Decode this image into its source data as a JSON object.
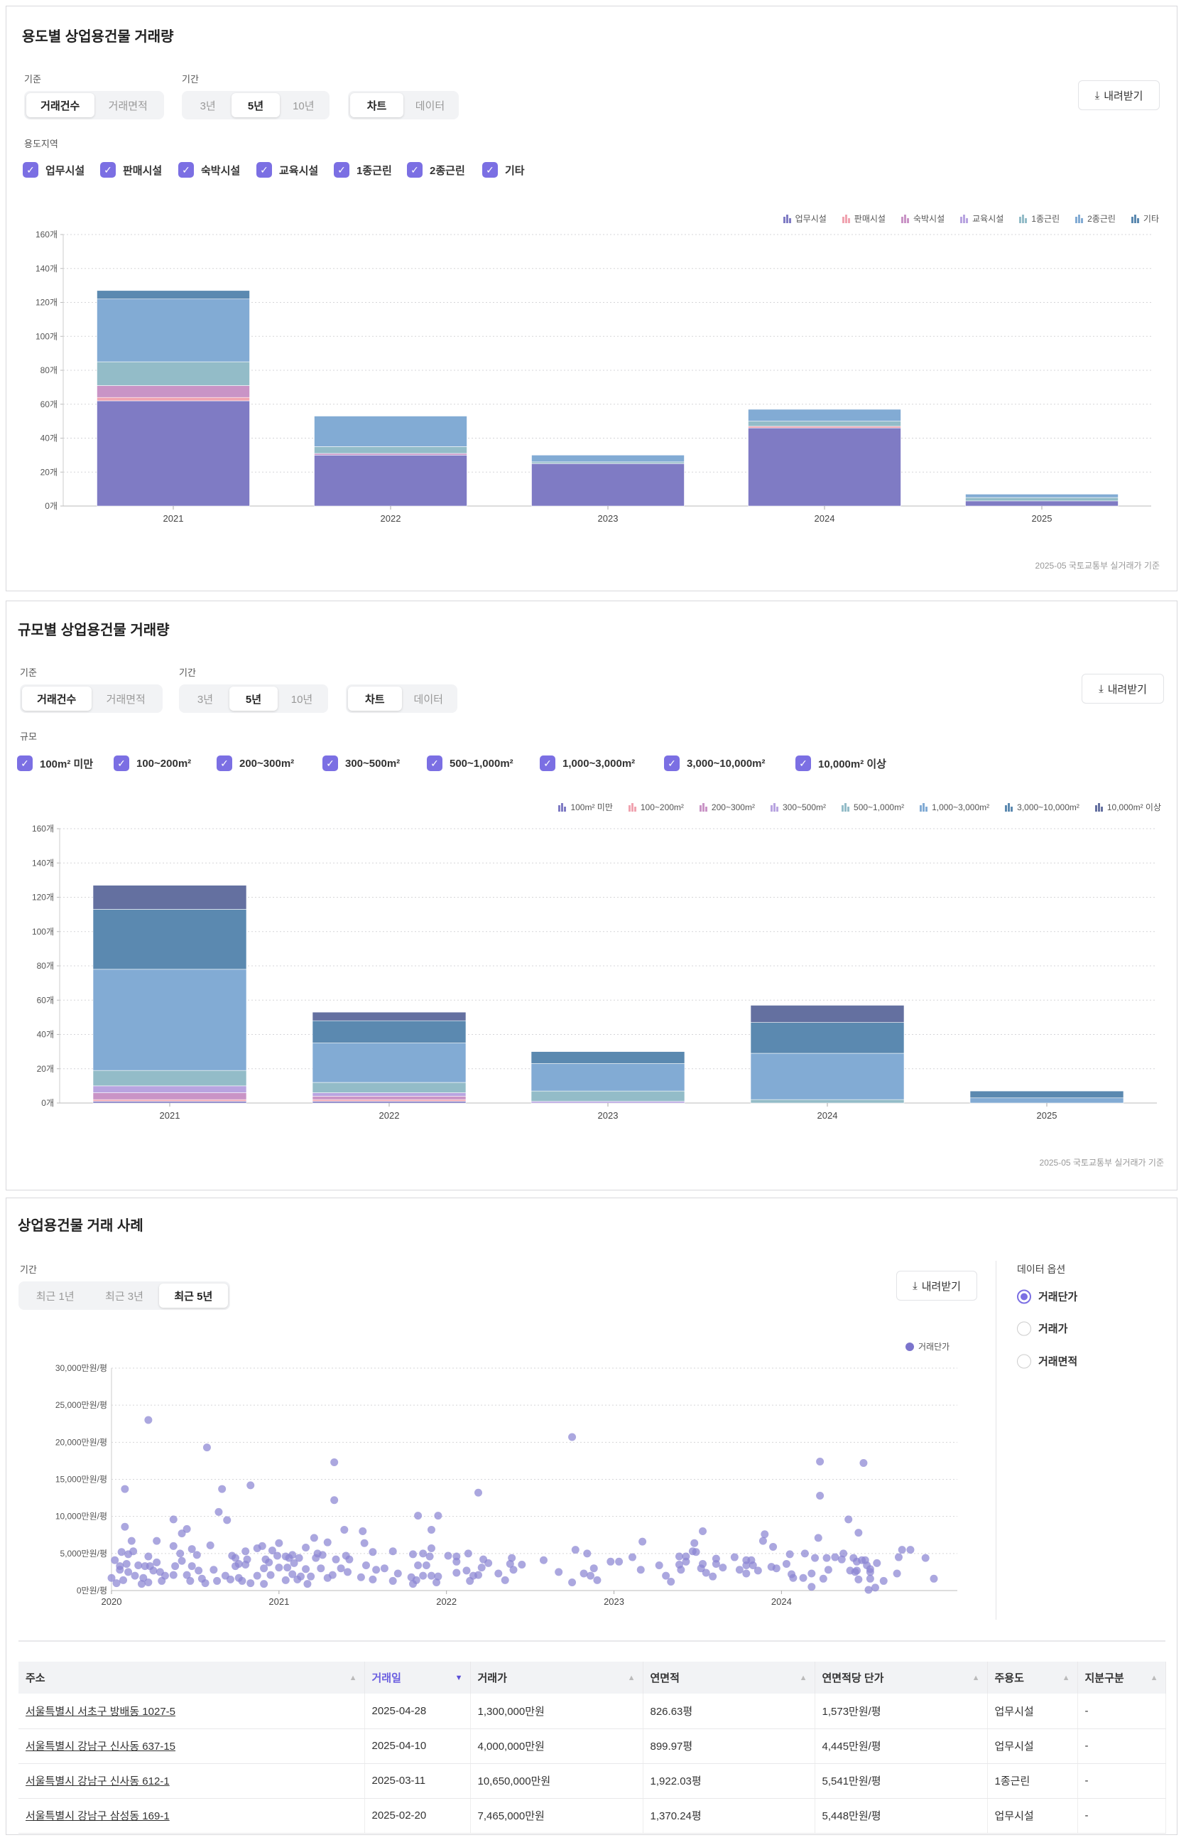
{
  "common": {
    "basis_label": "기준",
    "period_label": "기간",
    "download": "내려받기",
    "footnote": "2025-05 국토교통부 실거래가 기준",
    "basis_options": [
      "거래건수",
      "거래면적"
    ],
    "period_options": [
      "3년",
      "5년",
      "10년"
    ],
    "view_options": [
      "차트",
      "데이터"
    ]
  },
  "panel1": {
    "title": "용도별 상업용건물 거래량",
    "filter_label": "용도지역",
    "checkboxes": [
      "업무시설",
      "판매시설",
      "숙박시설",
      "교육시설",
      "1종근린",
      "2종근린",
      "기타"
    ]
  },
  "panel2": {
    "title": "규모별 상업용건물 거래량",
    "filter_label": "규모",
    "checkboxes": [
      "100m² 미만",
      "100~200m²",
      "200~300m²",
      "300~500m²",
      "500~1,000m²",
      "1,000~3,000m²",
      "3,000~10,000m²",
      "10,000m² 이상"
    ]
  },
  "panel3": {
    "title": "상업용건물 거래 사례",
    "period_label": "기간",
    "period_options": [
      "최근 1년",
      "최근 3년",
      "최근 5년"
    ],
    "data_options_label": "데이터 옵션",
    "data_options": [
      "거래단가",
      "거래가",
      "거래면적"
    ],
    "table": {
      "headers": [
        "주소",
        "거래일",
        "거래가",
        "연면적",
        "연면적당 단가",
        "주용도",
        "지분구분"
      ],
      "rows": [
        [
          "서울특별시 서초구 방배동 1027-5",
          "2025-04-28",
          "1,300,000만원",
          "826.63평",
          "1,573만원/평",
          "업무시설",
          "-"
        ],
        [
          "서울특별시 강남구 신사동 637-15",
          "2025-04-10",
          "4,000,000만원",
          "899.97평",
          "4,445만원/평",
          "업무시설",
          "-"
        ],
        [
          "서울특별시 강남구 신사동 612-1",
          "2025-03-11",
          "10,650,000만원",
          "1,922.03평",
          "5,541만원/평",
          "1종근린",
          "-"
        ],
        [
          "서울특별시 강남구 삼성동 169-1",
          "2025-02-20",
          "7,465,000만원",
          "1,370.24평",
          "5,448만원/평",
          "업무시설",
          "-"
        ]
      ]
    }
  },
  "chart_data": [
    {
      "type": "bar",
      "stacked": true,
      "title": "용도별 상업용건물 거래량",
      "categories": [
        "2021",
        "2022",
        "2023",
        "2024",
        "2025"
      ],
      "ylim": [
        0,
        160
      ],
      "yticks": [
        0,
        20,
        40,
        60,
        80,
        100,
        120,
        140,
        160
      ],
      "ytick_suffix": "개",
      "legend": "top-right",
      "series": [
        {
          "name": "업무시설",
          "color": "#7f7bc4",
          "values": [
            62,
            30,
            25,
            46,
            3
          ]
        },
        {
          "name": "판매시설",
          "color": "#f0a3b0",
          "values": [
            2,
            0,
            0,
            1,
            0
          ]
        },
        {
          "name": "숙박시설",
          "color": "#c994c6",
          "values": [
            7,
            1,
            0,
            0,
            0
          ]
        },
        {
          "name": "교육시설",
          "color": "#b8a4e0",
          "values": [
            0,
            0,
            0,
            0,
            0
          ]
        },
        {
          "name": "1종근린",
          "color": "#93bcc8",
          "values": [
            14,
            4,
            1,
            3,
            2
          ]
        },
        {
          "name": "2종근린",
          "color": "#82abd4",
          "values": [
            37,
            18,
            4,
            7,
            2
          ]
        },
        {
          "name": "기타",
          "color": "#5b89b0",
          "values": [
            5,
            0,
            0,
            0,
            0
          ]
        }
      ]
    },
    {
      "type": "bar",
      "stacked": true,
      "title": "규모별 상업용건물 거래량",
      "categories": [
        "2021",
        "2022",
        "2023",
        "2024",
        "2025"
      ],
      "ylim": [
        0,
        160
      ],
      "yticks": [
        0,
        20,
        40,
        60,
        80,
        100,
        120,
        140,
        160
      ],
      "ytick_suffix": "개",
      "legend": "top-right",
      "series": [
        {
          "name": "100m² 미만",
          "color": "#7f7bc4",
          "values": [
            1,
            1,
            0,
            0,
            0
          ]
        },
        {
          "name": "100~200m²",
          "color": "#f0a3b0",
          "values": [
            1,
            1,
            0,
            0,
            0
          ]
        },
        {
          "name": "200~300m²",
          "color": "#c994c6",
          "values": [
            4,
            2,
            0,
            0,
            0
          ]
        },
        {
          "name": "300~500m²",
          "color": "#b8a4e0",
          "values": [
            4,
            2,
            1,
            0,
            0
          ]
        },
        {
          "name": "500~1,000m²",
          "color": "#93bcc8",
          "values": [
            9,
            6,
            6,
            2,
            0
          ]
        },
        {
          "name": "1,000~3,000m²",
          "color": "#82abd4",
          "values": [
            59,
            23,
            16,
            27,
            3
          ]
        },
        {
          "name": "3,000~10,000m²",
          "color": "#5b89b0",
          "values": [
            35,
            13,
            7,
            18,
            4
          ]
        },
        {
          "name": "10,000m² 이상",
          "color": "#6470a0",
          "values": [
            14,
            5,
            0,
            10,
            0
          ]
        }
      ]
    },
    {
      "type": "scatter",
      "title": "상업용건물 거래 사례",
      "series_name": "거래단가",
      "color": "#8a85d2",
      "legend": "top-right",
      "xlim": [
        2020,
        2025.05
      ],
      "xticks": [
        2020,
        2021,
        2022,
        2023,
        2024
      ],
      "ylim": [
        0,
        30000
      ],
      "yticks": [
        0,
        5000,
        10000,
        15000,
        20000,
        25000,
        30000
      ],
      "ytick_suffix": "만원/평",
      "points": [
        [
          2020.0,
          1700
        ],
        [
          2020.02,
          4100
        ],
        [
          2020.03,
          1000
        ],
        [
          2020.05,
          3300
        ],
        [
          2020.05,
          2800
        ],
        [
          2020.06,
          5200
        ],
        [
          2020.07,
          1400
        ],
        [
          2020.08,
          13700
        ],
        [
          2020.08,
          8600
        ],
        [
          2020.09,
          3600
        ],
        [
          2020.1,
          2500
        ],
        [
          2020.1,
          4900
        ],
        [
          2020.12,
          6700
        ],
        [
          2020.13,
          5300
        ],
        [
          2020.14,
          2000
        ],
        [
          2020.16,
          3400
        ],
        [
          2020.18,
          900
        ],
        [
          2020.19,
          1700
        ],
        [
          2020.2,
          3300
        ],
        [
          2020.22,
          23000
        ],
        [
          2020.22,
          4600
        ],
        [
          2020.22,
          1100
        ],
        [
          2020.23,
          3300
        ],
        [
          2020.25,
          2700
        ],
        [
          2020.27,
          3800
        ],
        [
          2020.27,
          6700
        ],
        [
          2020.29,
          2500
        ],
        [
          2020.3,
          1300
        ],
        [
          2020.32,
          2000
        ],
        [
          2020.37,
          9600
        ],
        [
          2020.37,
          6000
        ],
        [
          2020.37,
          2100
        ],
        [
          2020.38,
          3300
        ],
        [
          2020.41,
          5000
        ],
        [
          2020.42,
          4000
        ],
        [
          2020.42,
          7700
        ],
        [
          2020.45,
          8300
        ],
        [
          2020.45,
          2100
        ],
        [
          2020.47,
          1300
        ],
        [
          2020.48,
          5600
        ],
        [
          2020.48,
          3300
        ],
        [
          2020.51,
          4800
        ],
        [
          2020.52,
          2700
        ],
        [
          2020.54,
          1600
        ],
        [
          2020.56,
          1000
        ],
        [
          2020.57,
          19300
        ],
        [
          2020.59,
          6100
        ],
        [
          2020.61,
          2800
        ],
        [
          2020.63,
          1300
        ],
        [
          2020.64,
          10600
        ],
        [
          2020.66,
          13700
        ],
        [
          2020.69,
          9500
        ],
        [
          2020.68,
          2000
        ],
        [
          2020.71,
          1500
        ],
        [
          2020.72,
          4700
        ],
        [
          2020.74,
          4400
        ],
        [
          2020.74,
          3300
        ],
        [
          2020.76,
          3600
        ],
        [
          2020.76,
          1700
        ],
        [
          2020.78,
          1300
        ],
        [
          2020.8,
          5300
        ],
        [
          2020.8,
          3500
        ],
        [
          2020.81,
          4200
        ],
        [
          2020.83,
          1000
        ],
        [
          2020.83,
          14200
        ],
        [
          2020.87,
          2000
        ],
        [
          2020.87,
          5700
        ],
        [
          2020.9,
          6000
        ],
        [
          2020.91,
          900
        ],
        [
          2020.91,
          3000
        ],
        [
          2020.92,
          4200
        ],
        [
          2020.94,
          3800
        ],
        [
          2020.95,
          2100
        ],
        [
          2020.96,
          5400
        ],
        [
          2020.99,
          4700
        ],
        [
          2021.0,
          3100
        ],
        [
          2021.0,
          6400
        ],
        [
          2021.04,
          4600
        ],
        [
          2021.04,
          1400
        ],
        [
          2021.05,
          3100
        ],
        [
          2021.06,
          4400
        ],
        [
          2021.08,
          2200
        ],
        [
          2021.08,
          4800
        ],
        [
          2021.09,
          3700
        ],
        [
          2021.11,
          1500
        ],
        [
          2021.12,
          4400
        ],
        [
          2021.13,
          1900
        ],
        [
          2021.16,
          5800
        ],
        [
          2021.16,
          2900
        ],
        [
          2021.17,
          900
        ],
        [
          2021.19,
          1900
        ],
        [
          2021.21,
          7100
        ],
        [
          2021.22,
          4400
        ],
        [
          2021.23,
          5000
        ],
        [
          2021.25,
          3000
        ],
        [
          2021.26,
          4800
        ],
        [
          2021.29,
          1700
        ],
        [
          2021.29,
          6500
        ],
        [
          2021.32,
          2100
        ],
        [
          2021.33,
          17300
        ],
        [
          2021.33,
          12200
        ],
        [
          2021.34,
          4200
        ],
        [
          2021.37,
          3000
        ],
        [
          2021.39,
          8200
        ],
        [
          2021.4,
          4700
        ],
        [
          2021.41,
          2500
        ],
        [
          2021.42,
          4200
        ],
        [
          2021.49,
          1800
        ],
        [
          2021.5,
          8000
        ],
        [
          2021.51,
          6400
        ],
        [
          2021.52,
          3400
        ],
        [
          2021.56,
          5200
        ],
        [
          2021.56,
          1500
        ],
        [
          2021.58,
          2800
        ],
        [
          2021.63,
          3000
        ],
        [
          2021.68,
          5300
        ],
        [
          2021.68,
          1300
        ],
        [
          2021.71,
          2300
        ],
        [
          2021.79,
          1800
        ],
        [
          2021.8,
          4900
        ],
        [
          2021.8,
          900
        ],
        [
          2021.82,
          1400
        ],
        [
          2021.83,
          10100
        ],
        [
          2021.83,
          3400
        ],
        [
          2021.86,
          2000
        ],
        [
          2021.86,
          5000
        ],
        [
          2021.88,
          3400
        ],
        [
          2021.9,
          4600
        ],
        [
          2021.91,
          8200
        ],
        [
          2021.91,
          5700
        ],
        [
          2021.91,
          2000
        ],
        [
          2021.94,
          1100
        ],
        [
          2021.95,
          10100
        ],
        [
          2021.95,
          1900
        ],
        [
          2022.01,
          4700
        ],
        [
          2022.06,
          4600
        ],
        [
          2022.06,
          2400
        ],
        [
          2022.06,
          3900
        ],
        [
          2022.12,
          2700
        ],
        [
          2022.13,
          5000
        ],
        [
          2022.14,
          1300
        ],
        [
          2022.16,
          2000
        ],
        [
          2022.19,
          13200
        ],
        [
          2022.19,
          2100
        ],
        [
          2022.21,
          3100
        ],
        [
          2022.22,
          4200
        ],
        [
          2022.25,
          3700
        ],
        [
          2022.31,
          2300
        ],
        [
          2022.35,
          1400
        ],
        [
          2022.38,
          3600
        ],
        [
          2022.39,
          4400
        ],
        [
          2022.4,
          2800
        ],
        [
          2022.45,
          3500
        ],
        [
          2022.58,
          4100
        ],
        [
          2022.67,
          2500
        ],
        [
          2022.75,
          1100
        ],
        [
          2022.75,
          20700
        ],
        [
          2022.77,
          5500
        ],
        [
          2022.82,
          2300
        ],
        [
          2022.84,
          5000
        ],
        [
          2022.86,
          2000
        ],
        [
          2022.88,
          3000
        ],
        [
          2022.9,
          1400
        ],
        [
          2022.98,
          3900
        ],
        [
          2023.03,
          3900
        ],
        [
          2023.11,
          4500
        ],
        [
          2023.16,
          2800
        ],
        [
          2023.17,
          6600
        ],
        [
          2023.27,
          3400
        ],
        [
          2023.31,
          2000
        ],
        [
          2023.34,
          1200
        ],
        [
          2023.39,
          3500
        ],
        [
          2023.39,
          4600
        ],
        [
          2023.4,
          2800
        ],
        [
          2023.43,
          4600
        ],
        [
          2023.43,
          3900
        ],
        [
          2023.47,
          5300
        ],
        [
          2023.48,
          6400
        ],
        [
          2023.49,
          5200
        ],
        [
          2023.52,
          3000
        ],
        [
          2023.53,
          8000
        ],
        [
          2023.53,
          3600
        ],
        [
          2023.55,
          2400
        ],
        [
          2023.59,
          1900
        ],
        [
          2023.61,
          4300
        ],
        [
          2023.61,
          3600
        ],
        [
          2023.65,
          3100
        ],
        [
          2023.72,
          4500
        ],
        [
          2023.75,
          2800
        ],
        [
          2023.79,
          3400
        ],
        [
          2023.79,
          2300
        ],
        [
          2023.79,
          4100
        ],
        [
          2023.82,
          4100
        ],
        [
          2023.83,
          3400
        ],
        [
          2023.86,
          2700
        ],
        [
          2023.89,
          6700
        ],
        [
          2023.9,
          7600
        ],
        [
          2023.94,
          3200
        ],
        [
          2023.95,
          5900
        ],
        [
          2023.97,
          3000
        ],
        [
          2024.03,
          3600
        ],
        [
          2024.05,
          4900
        ],
        [
          2024.06,
          2200
        ],
        [
          2024.07,
          1700
        ],
        [
          2024.13,
          1700
        ],
        [
          2024.14,
          5000
        ],
        [
          2024.18,
          2300
        ],
        [
          2024.18,
          500
        ],
        [
          2024.2,
          4400
        ],
        [
          2024.22,
          7100
        ],
        [
          2024.23,
          17400
        ],
        [
          2024.23,
          12800
        ],
        [
          2024.25,
          1600
        ],
        [
          2024.27,
          4400
        ],
        [
          2024.28,
          2800
        ],
        [
          2024.32,
          4500
        ],
        [
          2024.36,
          4200
        ],
        [
          2024.37,
          5000
        ],
        [
          2024.4,
          9600
        ],
        [
          2024.41,
          2700
        ],
        [
          2024.43,
          4400
        ],
        [
          2024.44,
          2500
        ],
        [
          2024.45,
          3900
        ],
        [
          2024.45,
          2700
        ],
        [
          2024.46,
          1500
        ],
        [
          2024.46,
          7800
        ],
        [
          2024.48,
          4100
        ],
        [
          2024.49,
          17200
        ],
        [
          2024.5,
          4100
        ],
        [
          2024.51,
          3400
        ],
        [
          2024.52,
          100
        ],
        [
          2024.53,
          2500
        ],
        [
          2024.53,
          2900
        ],
        [
          2024.53,
          1600
        ],
        [
          2024.56,
          400
        ],
        [
          2024.57,
          3700
        ],
        [
          2024.61,
          1300
        ],
        [
          2024.69,
          2300
        ],
        [
          2024.7,
          4500
        ],
        [
          2024.72,
          5500
        ],
        [
          2024.77,
          5500
        ],
        [
          2024.86,
          4400
        ],
        [
          2024.91,
          1600
        ]
      ]
    }
  ]
}
